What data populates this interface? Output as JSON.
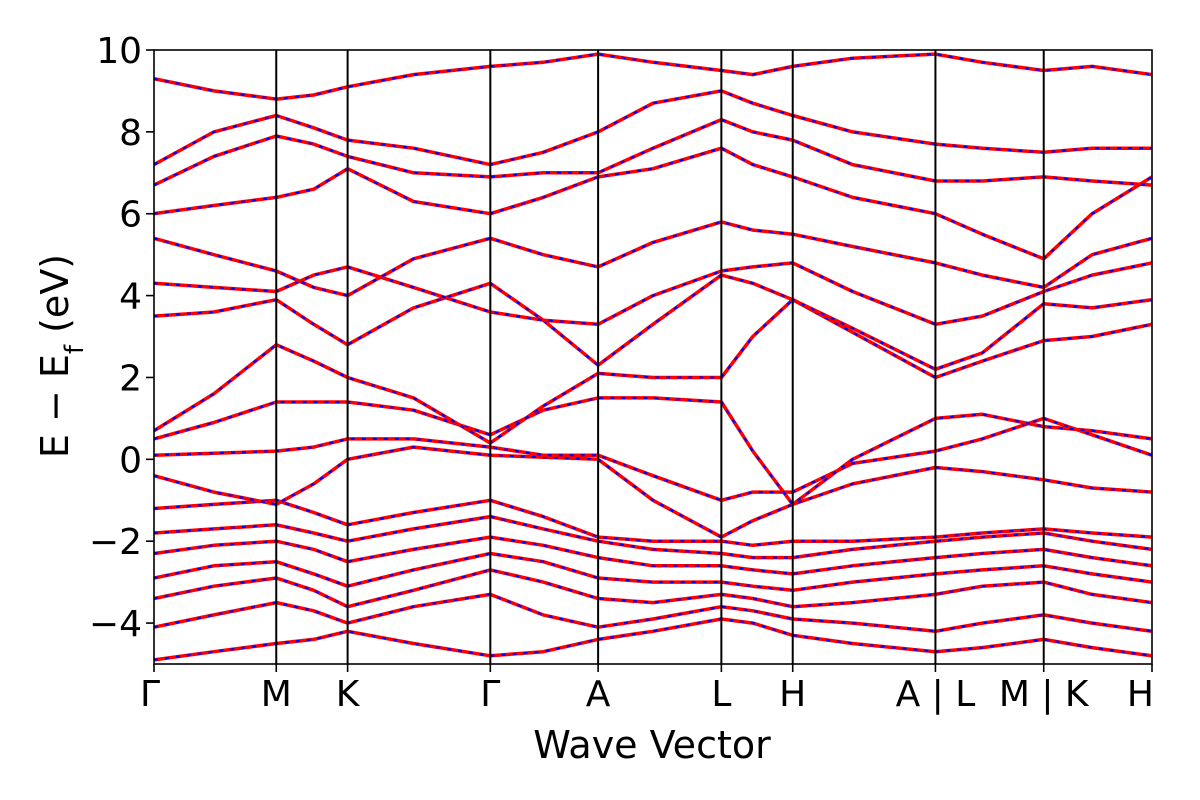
{
  "chart_data": {
    "type": "line",
    "title": "",
    "xlabel": "Wave Vector",
    "ylabel_main": "E − E",
    "ylabel_subscript": "f",
    "ylabel_unit": " (eV)",
    "ylim": [
      -5,
      10
    ],
    "yticks": [
      -4,
      -2,
      0,
      2,
      4,
      6,
      8,
      10
    ],
    "ytick_labels": [
      "−4",
      "−2",
      "0",
      "2",
      "4",
      "6",
      "8",
      "10"
    ],
    "x_units": "path distance (arbitrary, 0–1)",
    "kpath": [
      {
        "label": "Γ",
        "x": 0.0
      },
      {
        "label": "M",
        "x": 0.1225
      },
      {
        "label": "K",
        "x": 0.194
      },
      {
        "label": "Γ",
        "x": 0.337
      },
      {
        "label": "A",
        "x": 0.445
      },
      {
        "label": "L",
        "x": 0.5685
      },
      {
        "label": "H",
        "x": 0.64
      },
      {
        "label": "A | L",
        "x": 0.783
      },
      {
        "label": "M | K",
        "x": 0.8915
      },
      {
        "label": "H",
        "x": 1.0
      }
    ],
    "colors": {
      "band_solid": "#ff0000",
      "band_dashed": "#0000ff",
      "kpoint_line": "#000000",
      "axis": "#000000"
    },
    "bands": [
      {
        "name": "",
        "x": [
          0,
          0.06,
          0.1225,
          0.16,
          0.194,
          0.26,
          0.337,
          0.39,
          0.445,
          0.5,
          0.5685,
          0.6,
          0.64,
          0.7,
          0.783,
          0.83,
          0.8915,
          0.94,
          1.0
        ],
        "y": [
          -4.9,
          -4.7,
          -4.5,
          -4.4,
          -4.2,
          -4.5,
          -4.8,
          -4.7,
          -4.4,
          -4.2,
          -3.9,
          -4.0,
          -4.3,
          -4.5,
          -4.7,
          -4.6,
          -4.4,
          -4.6,
          -4.8
        ]
      },
      {
        "name": "",
        "x": [
          0,
          0.06,
          0.1225,
          0.16,
          0.194,
          0.26,
          0.337,
          0.39,
          0.445,
          0.5,
          0.5685,
          0.6,
          0.64,
          0.7,
          0.783,
          0.83,
          0.8915,
          0.94,
          1.0
        ],
        "y": [
          -4.1,
          -3.8,
          -3.5,
          -3.7,
          -4.0,
          -3.6,
          -3.3,
          -3.8,
          -4.1,
          -3.9,
          -3.6,
          -3.7,
          -3.9,
          -4.0,
          -4.2,
          -4.0,
          -3.8,
          -4.0,
          -4.2
        ]
      },
      {
        "name": "",
        "x": [
          0,
          0.06,
          0.1225,
          0.16,
          0.194,
          0.26,
          0.337,
          0.39,
          0.445,
          0.5,
          0.5685,
          0.6,
          0.64,
          0.7,
          0.783,
          0.83,
          0.8915,
          0.94,
          1.0
        ],
        "y": [
          -3.4,
          -3.1,
          -2.9,
          -3.2,
          -3.6,
          -3.2,
          -2.7,
          -3.0,
          -3.4,
          -3.5,
          -3.3,
          -3.4,
          -3.6,
          -3.5,
          -3.3,
          -3.1,
          -3.0,
          -3.3,
          -3.5
        ]
      },
      {
        "name": "",
        "x": [
          0,
          0.06,
          0.1225,
          0.16,
          0.194,
          0.26,
          0.337,
          0.39,
          0.445,
          0.5,
          0.5685,
          0.6,
          0.64,
          0.7,
          0.783,
          0.83,
          0.8915,
          0.94,
          1.0
        ],
        "y": [
          -2.9,
          -2.6,
          -2.5,
          -2.8,
          -3.1,
          -2.7,
          -2.3,
          -2.5,
          -2.9,
          -3.0,
          -3.0,
          -3.1,
          -3.2,
          -3.0,
          -2.8,
          -2.7,
          -2.6,
          -2.8,
          -3.0
        ]
      },
      {
        "name": "",
        "x": [
          0,
          0.06,
          0.1225,
          0.16,
          0.194,
          0.26,
          0.337,
          0.39,
          0.445,
          0.5,
          0.5685,
          0.6,
          0.64,
          0.7,
          0.783,
          0.83,
          0.8915,
          0.94,
          1.0
        ],
        "y": [
          -2.3,
          -2.1,
          -2.0,
          -2.2,
          -2.5,
          -2.2,
          -1.9,
          -2.1,
          -2.4,
          -2.6,
          -2.6,
          -2.7,
          -2.8,
          -2.6,
          -2.4,
          -2.3,
          -2.2,
          -2.4,
          -2.6
        ]
      },
      {
        "name": "",
        "x": [
          0,
          0.06,
          0.1225,
          0.16,
          0.194,
          0.26,
          0.337,
          0.39,
          0.445,
          0.5,
          0.5685,
          0.6,
          0.64,
          0.7,
          0.783,
          0.83,
          0.8915,
          0.94,
          1.0
        ],
        "y": [
          -1.8,
          -1.7,
          -1.6,
          -1.8,
          -2.0,
          -1.7,
          -1.4,
          -1.7,
          -2.0,
          -2.2,
          -2.3,
          -2.4,
          -2.4,
          -2.2,
          -2.0,
          -1.9,
          -1.8,
          -2.0,
          -2.2
        ]
      },
      {
        "name": "",
        "x": [
          0,
          0.06,
          0.1225,
          0.16,
          0.194,
          0.26,
          0.337,
          0.39,
          0.445,
          0.5,
          0.5685,
          0.6,
          0.64,
          0.7,
          0.783,
          0.83,
          0.8915,
          0.94,
          1.0
        ],
        "y": [
          -1.2,
          -1.1,
          -1.0,
          -1.3,
          -1.6,
          -1.3,
          -1.0,
          -1.4,
          -1.9,
          -2.0,
          -2.0,
          -2.1,
          -2.0,
          -2.0,
          -1.9,
          -1.8,
          -1.7,
          -1.8,
          -1.9
        ]
      },
      {
        "name": "",
        "x": [
          0,
          0.06,
          0.1225,
          0.16,
          0.194,
          0.26,
          0.337,
          0.39,
          0.445,
          0.5,
          0.5685,
          0.6,
          0.64,
          0.7,
          0.783,
          0.83,
          0.8915,
          0.94,
          1.0
        ],
        "y": [
          -0.4,
          -0.8,
          -1.1,
          -0.6,
          0.0,
          0.3,
          0.1,
          0.05,
          0.0,
          -1.0,
          -1.9,
          -1.5,
          -1.1,
          -0.6,
          -0.2,
          -0.3,
          -0.5,
          -0.7,
          -0.8
        ]
      },
      {
        "name": "",
        "x": [
          0,
          0.06,
          0.1225,
          0.16,
          0.194,
          0.26,
          0.337,
          0.39,
          0.445,
          0.5,
          0.5685,
          0.6,
          0.64,
          0.7,
          0.783,
          0.83,
          0.8915,
          0.94,
          1.0
        ],
        "y": [
          0.1,
          0.15,
          0.2,
          0.3,
          0.5,
          0.5,
          0.3,
          0.1,
          0.1,
          -0.4,
          -1.0,
          -0.8,
          -0.8,
          -0.1,
          0.2,
          0.5,
          1.0,
          0.6,
          0.1
        ]
      },
      {
        "name": "",
        "x": [
          0,
          0.06,
          0.1225,
          0.16,
          0.194,
          0.26,
          0.337,
          0.39,
          0.445,
          0.5,
          0.5685,
          0.6,
          0.64,
          0.7,
          0.783,
          0.83,
          0.8915,
          0.94,
          1.0
        ],
        "y": [
          0.5,
          0.9,
          1.4,
          1.4,
          1.4,
          1.2,
          0.6,
          1.2,
          1.5,
          1.5,
          1.4,
          0.2,
          -1.1,
          0.0,
          1.0,
          1.1,
          0.8,
          0.7,
          0.5
        ]
      },
      {
        "name": "",
        "x": [
          0,
          0.06,
          0.1225,
          0.16,
          0.194,
          0.26,
          0.337,
          0.39,
          0.445,
          0.5,
          0.5685,
          0.6,
          0.64,
          0.7,
          0.783,
          0.83,
          0.8915,
          0.94,
          1.0
        ],
        "y": [
          0.7,
          1.6,
          2.8,
          2.4,
          2.0,
          1.5,
          0.4,
          1.3,
          2.1,
          2.0,
          2.0,
          3.0,
          3.9,
          3.1,
          2.0,
          2.4,
          2.9,
          3.0,
          3.3
        ]
      },
      {
        "name": "",
        "x": [
          0,
          0.06,
          0.1225,
          0.16,
          0.194,
          0.26,
          0.337,
          0.39,
          0.445,
          0.5,
          0.5685,
          0.6,
          0.64,
          0.7,
          0.783,
          0.83,
          0.8915,
          0.94,
          1.0
        ],
        "y": [
          3.5,
          3.6,
          3.9,
          3.3,
          2.8,
          3.7,
          4.3,
          3.4,
          2.3,
          3.3,
          4.5,
          4.3,
          3.9,
          3.2,
          2.2,
          2.6,
          3.8,
          3.7,
          3.9
        ]
      },
      {
        "name": "",
        "x": [
          0,
          0.06,
          0.1225,
          0.16,
          0.194,
          0.26,
          0.337,
          0.39,
          0.445,
          0.5,
          0.5685,
          0.6,
          0.64,
          0.7,
          0.783,
          0.83,
          0.8915,
          0.94,
          1.0
        ],
        "y": [
          4.3,
          4.2,
          4.1,
          4.5,
          4.7,
          4.2,
          3.6,
          3.4,
          3.3,
          4.0,
          4.6,
          4.7,
          4.8,
          4.1,
          3.3,
          3.5,
          4.1,
          4.5,
          4.8
        ]
      },
      {
        "name": "",
        "x": [
          0,
          0.06,
          0.1225,
          0.16,
          0.194,
          0.26,
          0.337,
          0.39,
          0.445,
          0.5,
          0.5685,
          0.6,
          0.64,
          0.7,
          0.783,
          0.83,
          0.8915,
          0.94,
          1.0
        ],
        "y": [
          5.4,
          5.0,
          4.6,
          4.2,
          4.0,
          4.9,
          5.4,
          5.0,
          4.7,
          5.3,
          5.8,
          5.6,
          5.5,
          5.2,
          4.8,
          4.5,
          4.2,
          5.0,
          5.4
        ]
      },
      {
        "name": "",
        "x": [
          0,
          0.06,
          0.1225,
          0.16,
          0.194,
          0.26,
          0.337,
          0.39,
          0.445,
          0.5,
          0.5685,
          0.6,
          0.64,
          0.7,
          0.783,
          0.83,
          0.8915,
          0.94,
          1.0
        ],
        "y": [
          6.0,
          6.2,
          6.4,
          6.6,
          7.1,
          6.3,
          6.0,
          6.4,
          6.9,
          7.1,
          7.6,
          7.2,
          6.9,
          6.4,
          6.0,
          5.5,
          4.9,
          6.0,
          6.9
        ]
      },
      {
        "name": "",
        "x": [
          0,
          0.06,
          0.1225,
          0.16,
          0.194,
          0.26,
          0.337,
          0.39,
          0.445,
          0.5,
          0.5685,
          0.6,
          0.64,
          0.7,
          0.783,
          0.83,
          0.8915,
          0.94,
          1.0
        ],
        "y": [
          6.7,
          7.4,
          7.9,
          7.7,
          7.4,
          7.0,
          6.9,
          7.0,
          7.0,
          7.6,
          8.3,
          8.0,
          7.8,
          7.2,
          6.8,
          6.8,
          6.9,
          6.8,
          6.7
        ]
      },
      {
        "name": "",
        "x": [
          0,
          0.06,
          0.1225,
          0.16,
          0.194,
          0.26,
          0.337,
          0.39,
          0.445,
          0.5,
          0.5685,
          0.6,
          0.64,
          0.7,
          0.783,
          0.83,
          0.8915,
          0.94,
          1.0
        ],
        "y": [
          7.2,
          8.0,
          8.4,
          8.1,
          7.8,
          7.6,
          7.2,
          7.5,
          8.0,
          8.7,
          9.0,
          8.7,
          8.4,
          8.0,
          7.7,
          7.6,
          7.5,
          7.6,
          7.6
        ]
      },
      {
        "name": "",
        "x": [
          0,
          0.06,
          0.1225,
          0.16,
          0.194,
          0.26,
          0.337,
          0.39,
          0.445,
          0.5,
          0.5685,
          0.6,
          0.64,
          0.7,
          0.783,
          0.83,
          0.8915,
          0.94,
          1.0
        ],
        "y": [
          9.3,
          9.0,
          8.8,
          8.9,
          9.1,
          9.4,
          9.6,
          9.7,
          9.9,
          9.7,
          9.5,
          9.4,
          9.6,
          9.8,
          9.9,
          9.7,
          9.5,
          9.6,
          9.4
        ]
      }
    ]
  }
}
